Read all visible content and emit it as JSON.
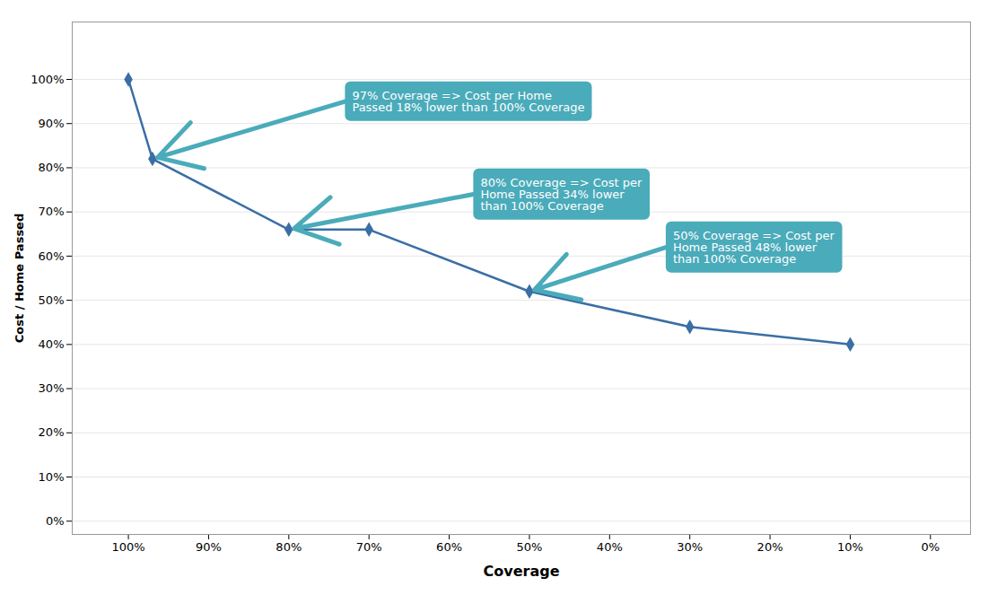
{
  "chart_data": {
    "type": "line",
    "xlabel": "Coverage",
    "ylabel": "Cost / Home Passed",
    "x": [
      100,
      97,
      80,
      70,
      50,
      30,
      10
    ],
    "values": [
      100,
      82,
      66,
      66,
      52,
      44,
      40
    ],
    "color": "#3A6EA5",
    "marker": "diamond",
    "xlim": [
      107,
      -5
    ],
    "ylim": [
      -3,
      113
    ],
    "xticks": [
      {
        "value": 100,
        "label": "100%"
      },
      {
        "value": 90,
        "label": "90%"
      },
      {
        "value": 80,
        "label": "80%"
      },
      {
        "value": 70,
        "label": "70%"
      },
      {
        "value": 60,
        "label": "60%"
      },
      {
        "value": 50,
        "label": "50%"
      },
      {
        "value": 40,
        "label": "40%"
      },
      {
        "value": 30,
        "label": "30%"
      },
      {
        "value": 20,
        "label": "20%"
      },
      {
        "value": 10,
        "label": "10%"
      },
      {
        "value": 0,
        "label": "0%"
      }
    ],
    "yticks": [
      {
        "value": 0,
        "label": "0%"
      },
      {
        "value": 10,
        "label": "10%"
      },
      {
        "value": 20,
        "label": "20%"
      },
      {
        "value": 30,
        "label": "30%"
      },
      {
        "value": 40,
        "label": "40%"
      },
      {
        "value": 50,
        "label": "50%"
      },
      {
        "value": 60,
        "label": "60%"
      },
      {
        "value": 70,
        "label": "70%"
      },
      {
        "value": 80,
        "label": "80%"
      },
      {
        "value": 90,
        "label": "90%"
      },
      {
        "value": 100,
        "label": "100%"
      }
    ],
    "grid": "y",
    "annotations": [
      {
        "text": "97% Coverage => Cost per Home\nPassed 18% lower than 100% Coverage",
        "x": 97,
        "y": 82,
        "text_x": 73,
        "text_y": 95,
        "color": "#4AABBA",
        "text_color": "#FFFFFF"
      },
      {
        "text": "80% Coverage => Cost per\nHome Passed 34% lower\nthan 100% Coverage",
        "x": 80,
        "y": 66,
        "text_x": 57,
        "text_y": 74,
        "color": "#4AABBA",
        "text_color": "#FFFFFF"
      },
      {
        "text": "50% Coverage => Cost per\nHome Passed 48% lower\nthan 100% Coverage",
        "x": 50,
        "y": 52,
        "text_x": 33,
        "text_y": 62,
        "color": "#4AABBA",
        "text_color": "#FFFFFF"
      }
    ]
  }
}
